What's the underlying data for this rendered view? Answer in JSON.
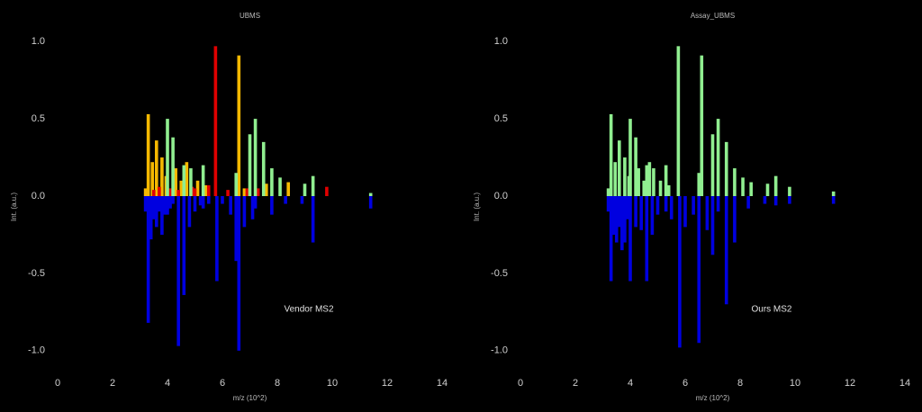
{
  "chart_data": [
    {
      "type": "mirror-bar",
      "title": "UBMS",
      "x_label": "m/z (10^2)",
      "y_label": "Int. (a.u.)",
      "annotation": "Vendor MS2",
      "xlim": [
        0,
        14
      ],
      "xticks": [
        0,
        2,
        4,
        6,
        8,
        10,
        12,
        14
      ],
      "ylim": [
        -1.1,
        1.1
      ],
      "yticks": [
        {
          "value": -1.0,
          "label": "-1.0"
        },
        {
          "value": -0.5,
          "label": "-0.5"
        },
        {
          "value": 0.0,
          "label": "0.0"
        },
        {
          "value": 0.5,
          "label": "0.5"
        },
        {
          "value": 1.0,
          "label": "1.0"
        }
      ],
      "series": [
        {
          "color": "#f5b800",
          "x": [
            3.2,
            3.3,
            3.45,
            3.6,
            3.8,
            3.95,
            4.3,
            4.5,
            4.7,
            5.1,
            5.4,
            6.6,
            6.8,
            7.6,
            8.4
          ],
          "values": [
            0.05,
            0.53,
            0.22,
            0.36,
            0.25,
            0.13,
            0.18,
            0.1,
            0.22,
            0.1,
            0.07,
            0.91,
            0.05,
            0.08,
            0.09
          ]
        },
        {
          "color": "#e00000",
          "x": [
            3.5,
            3.7,
            4.1,
            4.4,
            4.9,
            5.0,
            5.5,
            5.75,
            6.2,
            6.9,
            7.3,
            9.8
          ],
          "values": [
            0.04,
            0.06,
            0.05,
            0.04,
            0.06,
            0.05,
            0.07,
            0.97,
            0.04,
            0.05,
            0.05,
            0.06
          ]
        },
        {
          "color": "#90ee90",
          "x": [
            4.0,
            4.2,
            4.6,
            4.85,
            5.3,
            6.5,
            7.0,
            7.2,
            7.5,
            7.8,
            8.1,
            9.0,
            9.3,
            11.4
          ],
          "values": [
            0.5,
            0.38,
            0.2,
            0.18,
            0.2,
            0.15,
            0.4,
            0.5,
            0.35,
            0.18,
            0.12,
            0.08,
            0.13,
            0.02
          ]
        },
        {
          "color": "#0000e0",
          "x": [
            3.2,
            3.3,
            3.4,
            3.5,
            3.6,
            3.7,
            3.8,
            3.9,
            4.0,
            4.1,
            4.2,
            4.4,
            4.6,
            4.8,
            5.0,
            5.2,
            5.3,
            5.5,
            5.8,
            6.0,
            6.3,
            6.5,
            6.6,
            6.8,
            7.1,
            7.2,
            7.8,
            8.3,
            8.9,
            9.3,
            11.4
          ],
          "values": [
            -0.1,
            -0.82,
            -0.28,
            -0.15,
            -0.2,
            -0.1,
            -0.25,
            -0.12,
            -0.12,
            -0.08,
            -0.05,
            -0.97,
            -0.64,
            -0.2,
            -0.1,
            -0.06,
            -0.08,
            -0.05,
            -0.55,
            -0.05,
            -0.12,
            -0.42,
            -1.0,
            -0.2,
            -0.15,
            -0.08,
            -0.12,
            -0.05,
            -0.05,
            -0.3,
            -0.08
          ]
        }
      ]
    },
    {
      "type": "mirror-bar",
      "title": "Assay_UBMS",
      "x_label": "m/z (10^2)",
      "y_label": "Int. (a.u.)",
      "annotation": "Ours MS2",
      "xlim": [
        0,
        14
      ],
      "xticks": [
        0,
        2,
        4,
        6,
        8,
        10,
        12,
        14
      ],
      "ylim": [
        -1.1,
        1.1
      ],
      "yticks": [
        {
          "value": -1.0,
          "label": "-1.0"
        },
        {
          "value": -0.5,
          "label": "-0.5"
        },
        {
          "value": 0.0,
          "label": "0.0"
        },
        {
          "value": 0.5,
          "label": "0.5"
        },
        {
          "value": 1.0,
          "label": "1.0"
        }
      ],
      "series": [
        {
          "color": "#90ee90",
          "x": [
            3.2,
            3.3,
            3.45,
            3.6,
            3.8,
            3.95,
            4.0,
            4.2,
            4.3,
            4.5,
            4.6,
            4.7,
            4.85,
            5.1,
            5.3,
            5.4,
            5.75,
            6.5,
            6.6,
            7.0,
            7.2,
            7.5,
            7.8,
            8.1,
            8.4,
            9.0,
            9.3,
            9.8,
            11.4
          ],
          "values": [
            0.05,
            0.53,
            0.22,
            0.36,
            0.25,
            0.13,
            0.5,
            0.38,
            0.18,
            0.1,
            0.2,
            0.22,
            0.18,
            0.1,
            0.2,
            0.07,
            0.97,
            0.15,
            0.91,
            0.4,
            0.5,
            0.35,
            0.18,
            0.12,
            0.09,
            0.08,
            0.13,
            0.06,
            0.03
          ]
        },
        {
          "color": "#0000e0",
          "x": [
            3.2,
            3.3,
            3.4,
            3.5,
            3.6,
            3.7,
            3.8,
            3.9,
            4.0,
            4.2,
            4.4,
            4.6,
            4.8,
            5.0,
            5.3,
            5.5,
            5.8,
            6.0,
            6.3,
            6.5,
            6.8,
            7.0,
            7.2,
            7.5,
            7.8,
            8.3,
            8.9,
            9.3,
            9.8,
            11.4
          ],
          "values": [
            -0.1,
            -0.55,
            -0.25,
            -0.3,
            -0.2,
            -0.35,
            -0.3,
            -0.15,
            -0.55,
            -0.2,
            -0.22,
            -0.55,
            -0.25,
            -0.12,
            -0.1,
            -0.15,
            -0.98,
            -0.2,
            -0.12,
            -0.95,
            -0.22,
            -0.38,
            -0.1,
            -0.7,
            -0.3,
            -0.08,
            -0.05,
            -0.06,
            -0.05,
            -0.05
          ]
        }
      ]
    }
  ]
}
